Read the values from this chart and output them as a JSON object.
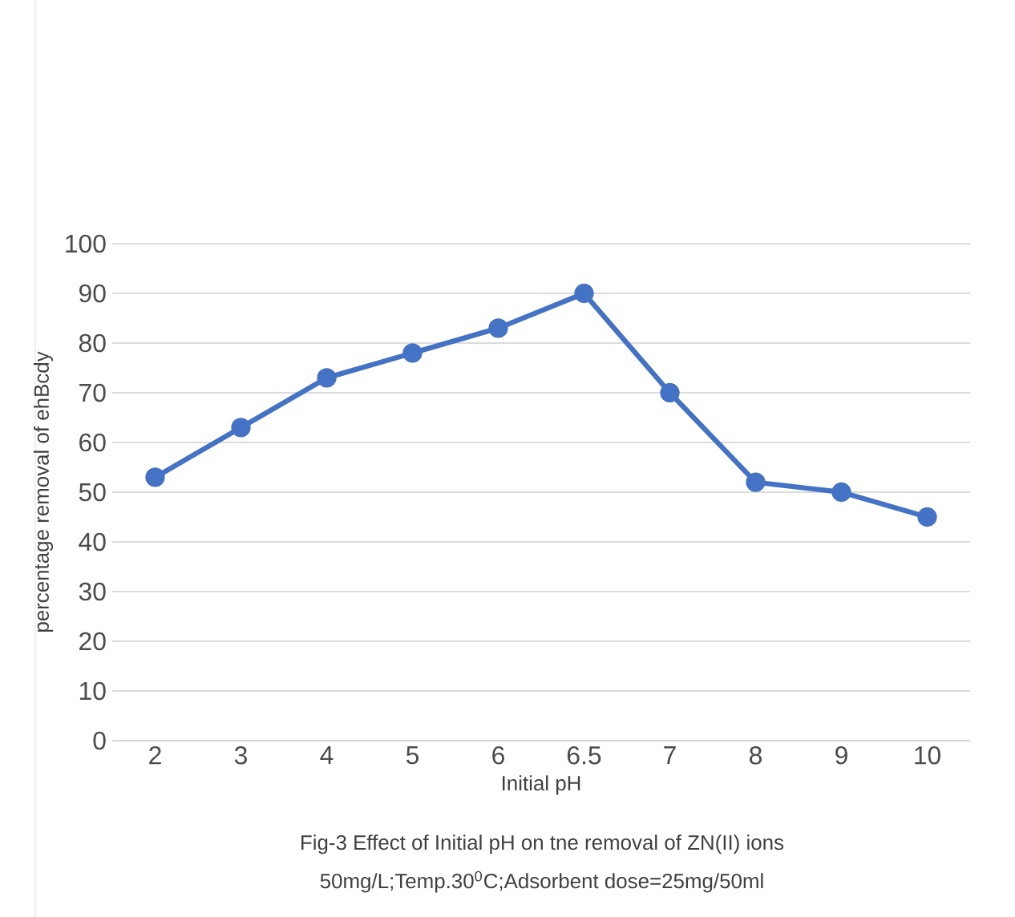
{
  "chart_data": {
    "type": "line",
    "xlabel": "Initial pH",
    "ylabel": "percentage removal of ehBcdy",
    "categories": [
      "2",
      "3",
      "4",
      "5",
      "6",
      "6.5",
      "7",
      "8",
      "9",
      "10"
    ],
    "series": [
      {
        "color": "#4472c4",
        "values": [
          53,
          63,
          73,
          78,
          83,
          90,
          70,
          52,
          50,
          45
        ]
      }
    ],
    "ylim": [
      0,
      100
    ],
    "yticks": [
      0,
      10,
      20,
      30,
      40,
      50,
      60,
      70,
      80,
      90,
      100
    ],
    "grid": "y",
    "marker": "circle",
    "line_style": "solid",
    "annotations": [
      "Fig-3 Effect of Initial pH on tne removal of  ZN(II) ions",
      "50mg/L;Temp.30$^{0}$C;Adsorbent dose=25mg/50ml"
    ]
  }
}
